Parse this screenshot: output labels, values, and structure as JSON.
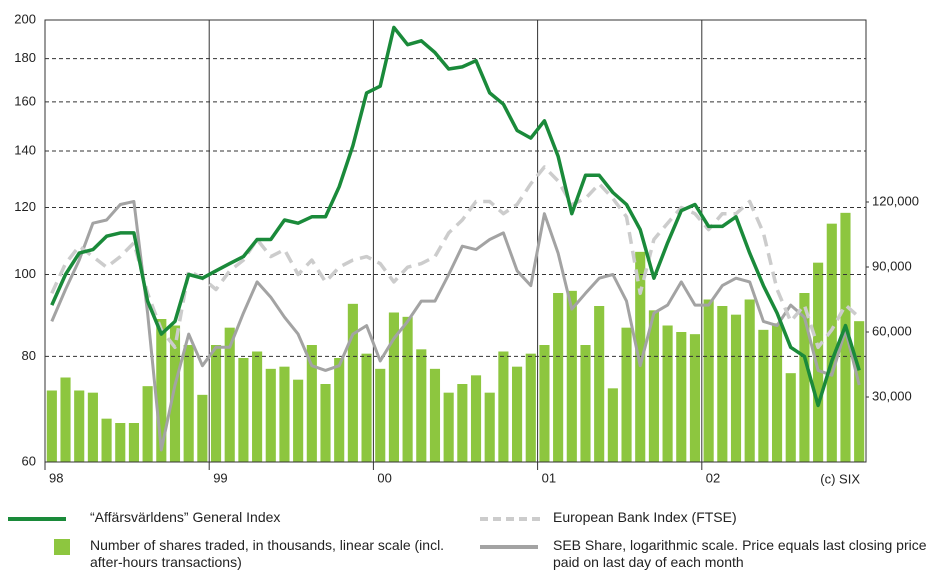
{
  "chart_data": {
    "type": "combo",
    "categories": [
      "98",
      null,
      null,
      null,
      null,
      null,
      null,
      null,
      null,
      null,
      null,
      null,
      "99",
      null,
      null,
      null,
      null,
      null,
      null,
      null,
      null,
      null,
      null,
      null,
      "00",
      null,
      null,
      null,
      null,
      null,
      null,
      null,
      null,
      null,
      null,
      null,
      "01",
      null,
      null,
      null,
      null,
      null,
      null,
      null,
      null,
      null,
      null,
      null,
      "02",
      null,
      null,
      null,
      null,
      null,
      null,
      null,
      null,
      null,
      null,
      null
    ],
    "ylim": [
      60,
      200
    ],
    "ylog": true,
    "yticks": [
      60,
      80,
      100,
      120,
      140,
      160,
      180,
      200
    ],
    "y2lim": [
      0,
      204000
    ],
    "y2ticks": [
      {
        "value": 30000,
        "label": "30,000"
      },
      {
        "value": 60000,
        "label": "60,000"
      },
      {
        "value": 90000,
        "label": "90,000"
      },
      {
        "value": 120000,
        "label": "120,000"
      }
    ],
    "grid": true,
    "annotation": "(c) SIX",
    "series": [
      {
        "name": "“Affärsvärldens” General Index",
        "type": "line",
        "color": "#1a8a3a",
        "axis": "y",
        "values": [
          92,
          100,
          106,
          107,
          111,
          112,
          112,
          93,
          85,
          88,
          100,
          99,
          101,
          103,
          105,
          110,
          110,
          116,
          115,
          117,
          117,
          127,
          142,
          164,
          167,
          196,
          187,
          189,
          183,
          175,
          176,
          179,
          164,
          159,
          148,
          145,
          152,
          138,
          118,
          131,
          131,
          125,
          121,
          113,
          99,
          109,
          119,
          121,
          114,
          114,
          117,
          106,
          97,
          90,
          82,
          80,
          70,
          79,
          87,
          77
        ]
      },
      {
        "name": "Number of shares traded, in thousands, linear scale (incl. after-hours transactions)",
        "type": "bar",
        "color": "#8dc63f",
        "axis": "y2",
        "values": [
          33000,
          39000,
          33000,
          32000,
          20000,
          18000,
          18000,
          35000,
          66000,
          63000,
          54000,
          31000,
          54000,
          62000,
          48000,
          51000,
          43000,
          44000,
          38000,
          54000,
          36000,
          48000,
          73000,
          50000,
          43000,
          69000,
          67000,
          52000,
          43000,
          32000,
          36000,
          40000,
          32000,
          51000,
          44000,
          50000,
          54000,
          78000,
          79000,
          54000,
          72000,
          34000,
          62000,
          97000,
          70000,
          63000,
          60000,
          59000,
          75000,
          72000,
          68000,
          75000,
          61000,
          64000,
          41000,
          78000,
          92000,
          110000,
          115000,
          65000
        ]
      },
      {
        "name": "European Bank Index (FTSE)",
        "type": "dashed",
        "color": "#cccccc",
        "axis": "y",
        "values": [
          95,
          103,
          108,
          105,
          102,
          105,
          109,
          95,
          86,
          82,
          101,
          99,
          96,
          101,
          104,
          110,
          105,
          107,
          100,
          104,
          98,
          102,
          104,
          105,
          103,
          98,
          102,
          103,
          105,
          112,
          116,
          122,
          122,
          118,
          121,
          128,
          134,
          129,
          121,
          123,
          128,
          123,
          117,
          95,
          110,
          115,
          120,
          118,
          113,
          118,
          118,
          122,
          112,
          96,
          88,
          92,
          82,
          86,
          92,
          89
        ]
      },
      {
        "name": "SEB Share, logarithmic scale. Price equals last closing price paid on last day of each month",
        "type": "line",
        "color": "#a3a3a3",
        "axis": "y",
        "values": [
          88,
          96,
          104,
          115,
          116,
          121,
          122,
          90,
          62,
          74,
          85,
          78,
          82,
          82,
          90,
          98,
          94,
          89,
          85,
          78,
          77,
          78,
          85,
          87,
          79,
          84,
          88,
          93,
          93,
          100,
          108,
          107,
          110,
          112,
          101,
          97,
          118,
          106,
          91,
          95,
          99,
          100,
          93,
          78,
          90,
          92,
          98,
          92,
          92,
          97,
          99,
          98,
          88,
          87,
          92,
          89,
          77,
          76,
          86,
          74
        ]
      }
    ]
  }
}
